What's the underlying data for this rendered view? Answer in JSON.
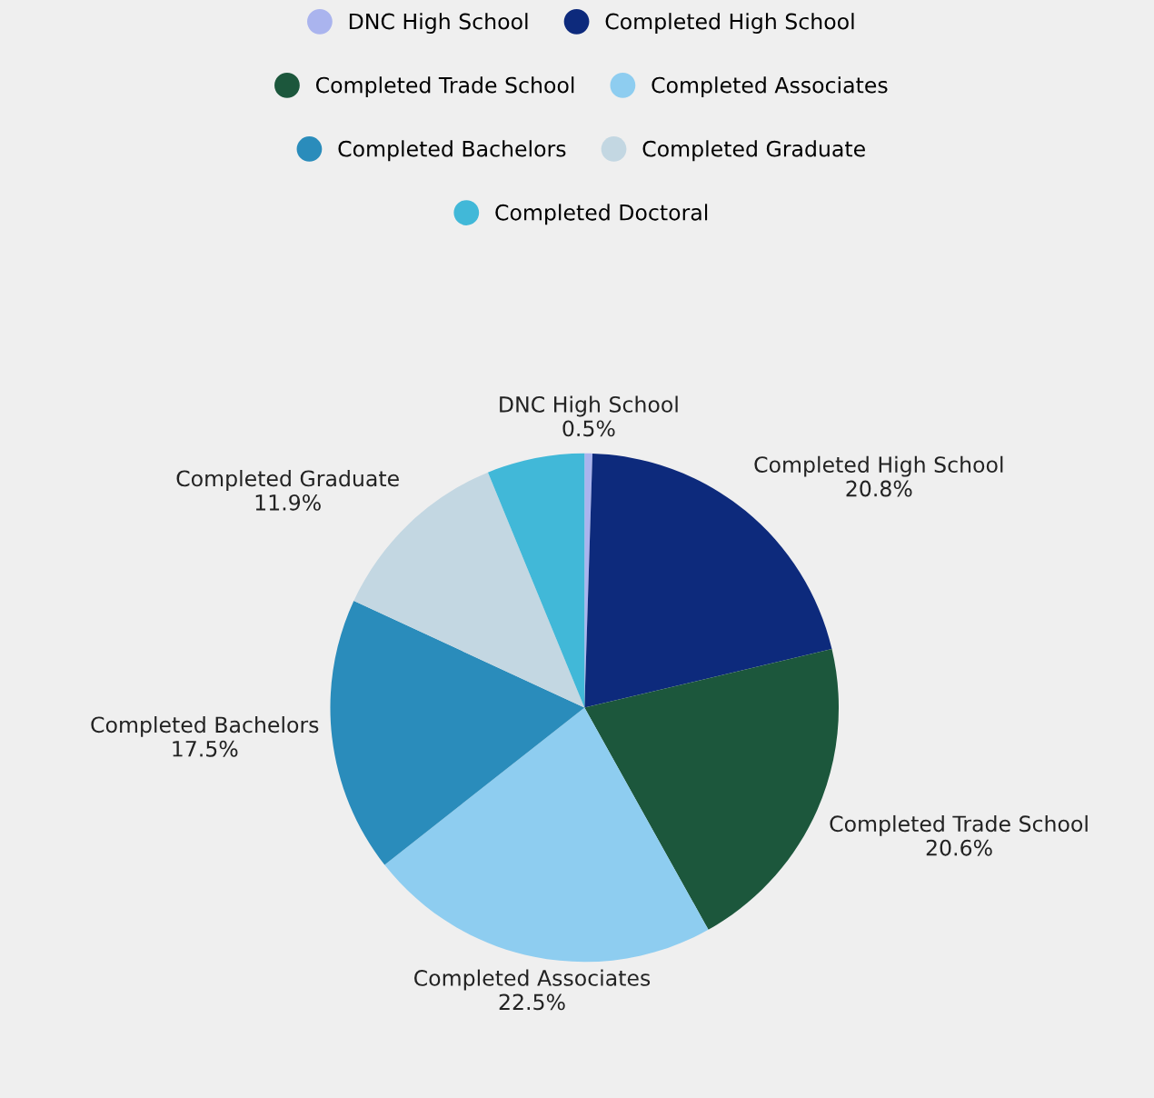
{
  "chart_data": {
    "type": "pie",
    "categories": [
      "DNC High School",
      "Completed High School",
      "Completed Trade School",
      "Completed Associates",
      "Completed Bachelors",
      "Completed Graduate",
      "Completed Doctoral"
    ],
    "values": [
      0.5,
      20.8,
      20.6,
      22.5,
      17.5,
      11.9,
      6.2
    ],
    "value_labels": [
      "0.5%",
      "20.8%",
      "20.6%",
      "22.5%",
      "17.5%",
      "11.9%",
      null
    ],
    "colors": [
      "#aab4ee",
      "#0d2a7c",
      "#1c573c",
      "#8ecdf0",
      "#2a8cbb",
      "#c3d7e2",
      "#41b8d8"
    ],
    "legend": "top"
  }
}
